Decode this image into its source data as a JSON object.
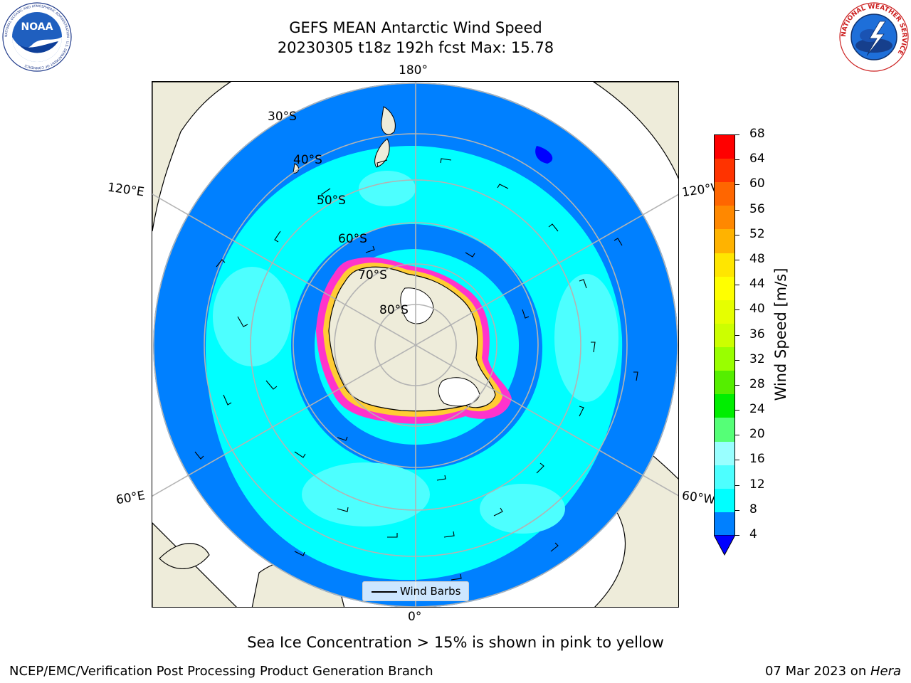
{
  "header": {
    "title_line1": "GEFS MEAN Antarctic Wind Speed",
    "title_line2": "20230305 t18z 192h fcst   Max: 15.78"
  },
  "logos": {
    "noaa": {
      "text": "NOAA",
      "ring_text": "NATIONAL OCEANIC AND ATMOSPHERIC ADMINISTRATION · U.S. DEPARTMENT OF COMMERCE"
    },
    "nws": {
      "ring_text": "NATIONAL WEATHER SERVICE"
    }
  },
  "map": {
    "projection": "south-polar-stereographic",
    "longitude_labels": {
      "top": "180°",
      "bottom": "0°",
      "upper_left": "120°E",
      "lower_left": "60°E",
      "upper_right": "120°W",
      "lower_right": "60°W"
    },
    "latitude_labels": [
      "30°S",
      "40°S",
      "50°S",
      "60°S",
      "70°S",
      "80°S"
    ],
    "legend_label": "Wind Barbs",
    "colors": {
      "land": "#eeecda",
      "ice_shelf": "#ffffff",
      "sea_ice_edge": "#ff33cc",
      "sea_ice_inner": "#ffcc33",
      "gridline": "#b3b3b3",
      "speed_4_8": "#0080ff",
      "speed_8_12": "#00ffff",
      "speed_12_16": "#4dffff",
      "below_4": "#0000ff"
    }
  },
  "colorbar": {
    "label": "Wind Speed [m/s]",
    "ticks": [
      "68",
      "64",
      "60",
      "56",
      "52",
      "48",
      "44",
      "40",
      "36",
      "32",
      "28",
      "24",
      "20",
      "16",
      "12",
      "8",
      "4"
    ],
    "colors": [
      "#ff0000",
      "#ff3300",
      "#ff6600",
      "#ff8800",
      "#ffb300",
      "#ffe600",
      "#ffff00",
      "#e6ff00",
      "#ccff00",
      "#99ff00",
      "#55ee00",
      "#00ee00",
      "#55ff77",
      "#99ffff",
      "#4dffff",
      "#00ffff",
      "#0080ff"
    ],
    "underflow_color": "#0000ff"
  },
  "caption": "Sea Ice Concentration > 15% is shown in pink to yellow",
  "footer": {
    "left": "NCEP/EMC/Verification Post Processing Product Generation Branch",
    "date": "07 Mar 2023 on ",
    "host": "Hera"
  }
}
